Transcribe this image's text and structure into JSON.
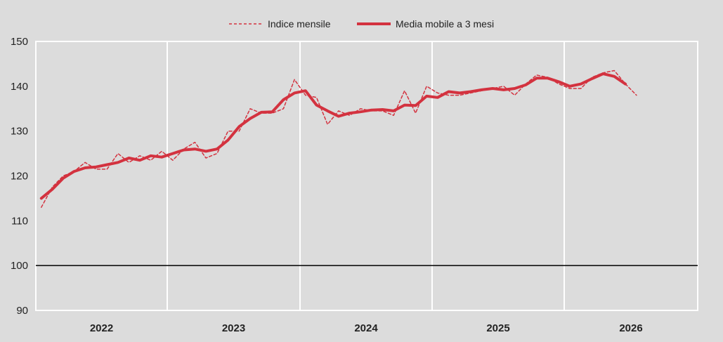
{
  "chart_data": {
    "type": "line",
    "xlabel": "",
    "ylabel": "",
    "ylim": [
      90,
      150
    ],
    "yticks": [
      "90",
      "100",
      "110",
      "120",
      "130",
      "140",
      "150"
    ],
    "year_labels": [
      "2022",
      "2023",
      "2024",
      "2025",
      "2026"
    ],
    "reference_line": 100,
    "grid": "white vertical lines at year boundaries",
    "legend_position": "top-center",
    "colors": {
      "series": "#d3323f",
      "background": "#dcdcdc",
      "reference": "#000000",
      "grid": "#ffffff"
    },
    "series": [
      {
        "name": "Indice mensile",
        "style": "dashed",
        "x": [
          "2022-01",
          "2022-02",
          "2022-03",
          "2022-04",
          "2022-05",
          "2022-06",
          "2022-07",
          "2022-08",
          "2022-09",
          "2022-10",
          "2022-11",
          "2022-12",
          "2023-01",
          "2023-02",
          "2023-03",
          "2023-04",
          "2023-05",
          "2023-06",
          "2023-07",
          "2023-08",
          "2023-09",
          "2023-10",
          "2023-11",
          "2023-12",
          "2024-01",
          "2024-02",
          "2024-03",
          "2024-04",
          "2024-05",
          "2024-06",
          "2024-07",
          "2024-08",
          "2024-09",
          "2024-10",
          "2024-11",
          "2024-12",
          "2025-01",
          "2025-02",
          "2025-03",
          "2025-04",
          "2025-05",
          "2025-06",
          "2025-07",
          "2025-08",
          "2025-09",
          "2025-10",
          "2025-11",
          "2025-12",
          "2026-01",
          "2026-02",
          "2026-03",
          "2026-04",
          "2026-05",
          "2026-06"
        ],
        "values": [
          113.0,
          117.5,
          120.0,
          121.0,
          123.0,
          121.5,
          121.5,
          125.0,
          123.0,
          124.5,
          123.5,
          125.5,
          123.5,
          126.0,
          127.5,
          124.0,
          125.0,
          130.0,
          130.0,
          135.0,
          134.0,
          134.0,
          135.0,
          141.5,
          138.0,
          137.5,
          131.5,
          134.5,
          133.5,
          135.0,
          134.5,
          134.5,
          133.5,
          139.0,
          134.0,
          140.0,
          138.5,
          138.0,
          138.0,
          138.5,
          139.0,
          139.5,
          140.0,
          138.0,
          140.5,
          142.5,
          142.0,
          140.5,
          139.5,
          139.5,
          142.0,
          143.0,
          143.5,
          140.5
        ],
        "extra_points": [
          {
            "x": "2026-07",
            "y": 138.0
          }
        ]
      },
      {
        "name": "Media mobile a 3 mesi",
        "style": "solid",
        "x": [
          "2022-01",
          "2022-02",
          "2022-03",
          "2022-04",
          "2022-05",
          "2022-06",
          "2022-07",
          "2022-08",
          "2022-09",
          "2022-10",
          "2022-11",
          "2022-12",
          "2023-01",
          "2023-02",
          "2023-03",
          "2023-04",
          "2023-05",
          "2023-06",
          "2023-07",
          "2023-08",
          "2023-09",
          "2023-10",
          "2023-11",
          "2023-12",
          "2024-01",
          "2024-02",
          "2024-03",
          "2024-04",
          "2024-05",
          "2024-06",
          "2024-07",
          "2024-08",
          "2024-09",
          "2024-10",
          "2024-11",
          "2024-12",
          "2025-01",
          "2025-02",
          "2025-03",
          "2025-04",
          "2025-05",
          "2025-06",
          "2025-07",
          "2025-08",
          "2025-09",
          "2025-10",
          "2025-11",
          "2025-12",
          "2026-01",
          "2026-02",
          "2026-03",
          "2026-04",
          "2026-05",
          "2026-06"
        ],
        "values": [
          115.0,
          117.0,
          119.5,
          121.0,
          121.8,
          122.0,
          122.5,
          123.0,
          124.0,
          123.5,
          124.5,
          124.2,
          125.0,
          125.8,
          126.0,
          125.5,
          126.0,
          128.0,
          131.0,
          132.8,
          134.2,
          134.3,
          137.0,
          138.5,
          139.0,
          135.8,
          134.5,
          133.3,
          134.0,
          134.3,
          134.7,
          134.8,
          134.5,
          135.8,
          135.7,
          137.8,
          137.5,
          138.8,
          138.5,
          138.8,
          139.2,
          139.5,
          139.2,
          139.5,
          140.3,
          141.8,
          141.8,
          141.0,
          140.0,
          140.5,
          141.7,
          142.8,
          142.2,
          140.5
        ]
      }
    ]
  }
}
